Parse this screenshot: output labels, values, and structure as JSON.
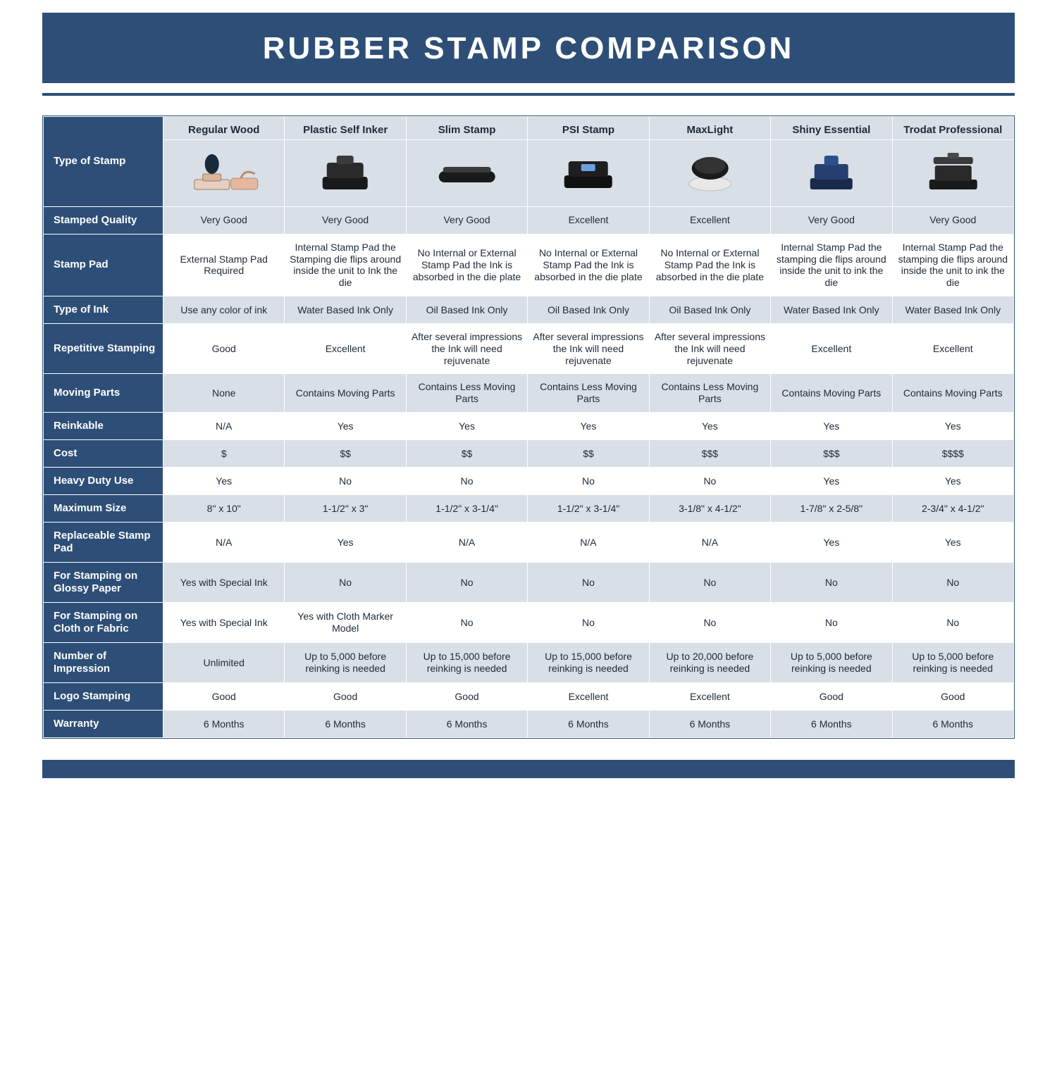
{
  "colors": {
    "brand": "#2d4f77",
    "shade": "#d8dfe6",
    "text": "#1e2a38",
    "white": "#ffffff"
  },
  "title": "RUBBER STAMP COMPARISON",
  "row_header_label": "Type of Stamp",
  "columns": [
    "Regular Wood",
    "Plastic Self Inker",
    "Slim Stamp",
    "PSI Stamp",
    "MaxLight",
    "Shiny Essential",
    "Trodat Professional"
  ],
  "rows": [
    {
      "label": "Stamped Quality",
      "shade": true,
      "cells": [
        "Very Good",
        "Very Good",
        "Very Good",
        "Excellent",
        "Excellent",
        "Very Good",
        "Very Good"
      ]
    },
    {
      "label": "Stamp Pad",
      "shade": false,
      "cells": [
        "External Stamp Pad Required",
        "Internal Stamp Pad the Stamping die flips around inside the unit to Ink the die",
        "No Internal or External Stamp Pad the Ink is absorbed in the die plate",
        "No Internal or External Stamp Pad the Ink is absorbed in the die plate",
        "No Internal or External Stamp Pad the Ink is absorbed in the die plate",
        "Internal Stamp Pad the stamping die flips around inside the unit to ink the die",
        "Internal Stamp Pad the stamping die flips around inside the unit to ink the die"
      ]
    },
    {
      "label": "Type of Ink",
      "shade": true,
      "cells": [
        "Use any color of ink",
        "Water Based Ink Only",
        "Oil Based Ink Only",
        "Oil Based Ink Only",
        "Oil Based Ink Only",
        "Water Based Ink Only",
        "Water Based Ink Only"
      ]
    },
    {
      "label": "Repetitive Stamping",
      "shade": false,
      "cells": [
        "Good",
        "Excellent",
        "After several impressions the Ink will need rejuvenate",
        "After several impressions the Ink will need rejuvenate",
        "After several impressions the Ink will need rejuvenate",
        "Excellent",
        "Excellent"
      ]
    },
    {
      "label": "Moving Parts",
      "shade": true,
      "cells": [
        "None",
        "Contains Moving Parts",
        "Contains Less Moving Parts",
        "Contains Less Moving Parts",
        "Contains Less Moving Parts",
        "Contains Moving Parts",
        "Contains Moving Parts"
      ]
    },
    {
      "label": "Reinkable",
      "shade": false,
      "cells": [
        "N/A",
        "Yes",
        "Yes",
        "Yes",
        "Yes",
        "Yes",
        "Yes"
      ]
    },
    {
      "label": "Cost",
      "shade": true,
      "cells": [
        "$",
        "$$",
        "$$",
        "$$",
        "$$$",
        "$$$",
        "$$$$"
      ]
    },
    {
      "label": "Heavy Duty Use",
      "shade": false,
      "cells": [
        "Yes",
        "No",
        "No",
        "No",
        "No",
        "Yes",
        "Yes"
      ]
    },
    {
      "label": "Maximum Size",
      "shade": true,
      "cells": [
        "8\" x 10\"",
        "1-1/2\" x 3\"",
        "1-1/2\" x 3-1/4\"",
        "1-1/2\" x 3-1/4\"",
        "3-1/8\" x 4-1/2\"",
        "1-7/8\" x 2-5/8\"",
        "2-3/4\" x 4-1/2\""
      ]
    },
    {
      "label": "Replaceable Stamp Pad",
      "shade": false,
      "cells": [
        "N/A",
        "Yes",
        "N/A",
        "N/A",
        "N/A",
        "Yes",
        "Yes"
      ]
    },
    {
      "label": "For Stamping on Glossy Paper",
      "shade": true,
      "cells": [
        "Yes with Special Ink",
        "No",
        "No",
        "No",
        "No",
        "No",
        "No"
      ]
    },
    {
      "label": "For Stamping on Cloth or Fabric",
      "shade": false,
      "cells": [
        "Yes with Special Ink",
        "Yes with Cloth Marker Model",
        "No",
        "No",
        "No",
        "No",
        "No"
      ]
    },
    {
      "label": "Number of Impression",
      "shade": true,
      "cells": [
        "Unlimited",
        "Up to 5,000 before reinking is needed",
        "Up to 15,000 before reinking is needed",
        "Up to 15,000 before reinking is needed",
        "Up to 20,000 before reinking is needed",
        "Up to 5,000 before reinking is needed",
        "Up to 5,000 before reinking is needed"
      ]
    },
    {
      "label": "Logo Stamping",
      "shade": false,
      "cells": [
        "Good",
        "Good",
        "Good",
        "Excellent",
        "Excellent",
        "Good",
        "Good"
      ]
    },
    {
      "label": "Warranty",
      "shade": true,
      "cells": [
        "6 Months",
        "6 Months",
        "6 Months",
        "6 Months",
        "6 Months",
        "6 Months",
        "6 Months"
      ]
    }
  ]
}
